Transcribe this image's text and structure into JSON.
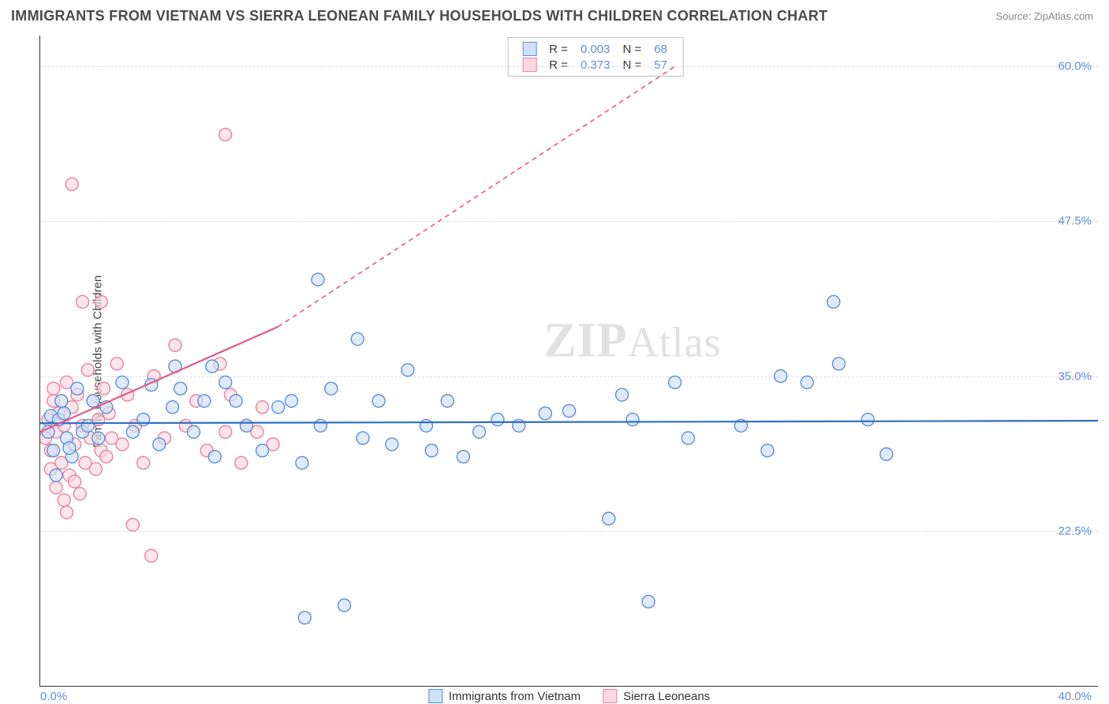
{
  "header": {
    "title": "IMMIGRANTS FROM VIETNAM VS SIERRA LEONEAN FAMILY HOUSEHOLDS WITH CHILDREN CORRELATION CHART",
    "source": "Source: ZipAtlas.com"
  },
  "y_axis": {
    "label": "Family Households with Children"
  },
  "watermark": {
    "a": "ZIP",
    "b": "Atlas"
  },
  "chart": {
    "type": "scatter",
    "xlim": [
      0,
      40
    ],
    "ylim": [
      10,
      62.5
    ],
    "x_ticks": [
      {
        "v": 0,
        "label": "0.0%"
      },
      {
        "v": 40,
        "label": "40.0%"
      }
    ],
    "y_ticks": [
      {
        "v": 22.5,
        "label": "22.5%"
      },
      {
        "v": 35.0,
        "label": "35.0%"
      },
      {
        "v": 47.5,
        "label": "47.5%"
      },
      {
        "v": 60.0,
        "label": "60.0%"
      }
    ],
    "grid_color": "#dddddd",
    "background_color": "#ffffff",
    "series": [
      {
        "name": "Immigrants from Vietnam",
        "label": "Immigrants from Vietnam",
        "stroke": "#5b8fd6",
        "fill": "#cfe0f7",
        "fill_opacity": 0.65,
        "marker_r": 8,
        "R": "0.003",
        "N": "68",
        "trend": {
          "x0": 0,
          "y0": 31.2,
          "x1": 40,
          "y1": 31.4,
          "color": "#2f6fc4",
          "width": 2.2,
          "dash": ""
        },
        "points": [
          [
            0.3,
            30.5
          ],
          [
            0.4,
            31.8
          ],
          [
            0.5,
            29.0
          ],
          [
            0.6,
            27.0
          ],
          [
            0.8,
            33.0
          ],
          [
            1.0,
            30.0
          ],
          [
            0.7,
            31.5
          ],
          [
            0.9,
            32.0
          ],
          [
            1.2,
            28.5
          ],
          [
            1.4,
            34.0
          ],
          [
            1.6,
            30.5
          ],
          [
            1.1,
            29.2
          ],
          [
            1.8,
            31.0
          ],
          [
            2.0,
            33.0
          ],
          [
            2.2,
            30.0
          ],
          [
            2.5,
            32.5
          ],
          [
            3.1,
            34.5
          ],
          [
            3.5,
            30.5
          ],
          [
            3.9,
            31.5
          ],
          [
            4.2,
            34.3
          ],
          [
            4.5,
            29.5
          ],
          [
            5.0,
            32.5
          ],
          [
            5.1,
            35.8
          ],
          [
            5.3,
            34.0
          ],
          [
            5.8,
            30.5
          ],
          [
            6.2,
            33.0
          ],
          [
            6.6,
            28.5
          ],
          [
            7.0,
            34.5
          ],
          [
            7.4,
            33.0
          ],
          [
            7.8,
            31.0
          ],
          [
            8.4,
            29.0
          ],
          [
            9.0,
            32.5
          ],
          [
            9.5,
            33.0
          ],
          [
            9.9,
            28.0
          ],
          [
            10.0,
            15.5
          ],
          [
            10.5,
            42.8
          ],
          [
            10.6,
            31.0
          ],
          [
            11.0,
            34.0
          ],
          [
            11.5,
            16.5
          ],
          [
            12.0,
            38.0
          ],
          [
            12.2,
            30.0
          ],
          [
            12.8,
            33.0
          ],
          [
            13.3,
            29.5
          ],
          [
            13.9,
            35.5
          ],
          [
            14.6,
            31.0
          ],
          [
            14.8,
            29.0
          ],
          [
            15.4,
            33.0
          ],
          [
            16.0,
            28.5
          ],
          [
            16.6,
            30.5
          ],
          [
            17.3,
            31.5
          ],
          [
            18.1,
            31.0
          ],
          [
            19.1,
            32.0
          ],
          [
            21.5,
            23.5
          ],
          [
            22.0,
            33.5
          ],
          [
            22.4,
            31.5
          ],
          [
            23.0,
            16.8
          ],
          [
            24.0,
            34.5
          ],
          [
            26.5,
            31.0
          ],
          [
            27.5,
            29.0
          ],
          [
            28.0,
            35.0
          ],
          [
            30.0,
            41.0
          ],
          [
            30.2,
            36.0
          ],
          [
            31.3,
            31.5
          ],
          [
            32.0,
            28.7
          ],
          [
            29.0,
            34.5
          ],
          [
            24.5,
            30.0
          ],
          [
            20.0,
            32.2
          ],
          [
            6.5,
            35.8
          ]
        ]
      },
      {
        "name": "Sierra Leoneans",
        "label": "Sierra Leoneans",
        "stroke": "#e8839f",
        "fill": "#fbd7e1",
        "fill_opacity": 0.65,
        "marker_r": 8,
        "R": "0.373",
        "N": "57",
        "trend": {
          "x0": 0,
          "y0": 30.5,
          "x1": 9,
          "y1": 39.0,
          "color": "#e35a85",
          "width": 2.2,
          "dash": "",
          "ext_x1": 24,
          "ext_y1": 60.0,
          "ext_dash": "6 5"
        },
        "points": [
          [
            0.2,
            30.0
          ],
          [
            0.3,
            31.5
          ],
          [
            0.4,
            29.0
          ],
          [
            0.5,
            33.0
          ],
          [
            0.6,
            30.5
          ],
          [
            0.7,
            32.0
          ],
          [
            0.8,
            28.0
          ],
          [
            0.9,
            31.0
          ],
          [
            1.0,
            34.5
          ],
          [
            1.1,
            27.0
          ],
          [
            1.2,
            32.5
          ],
          [
            1.3,
            29.5
          ],
          [
            1.4,
            33.5
          ],
          [
            1.5,
            25.5
          ],
          [
            1.6,
            31.0
          ],
          [
            0.9,
            25.0
          ],
          [
            1.7,
            28.0
          ],
          [
            1.8,
            35.5
          ],
          [
            1.9,
            30.0
          ],
          [
            2.0,
            33.0
          ],
          [
            2.1,
            27.5
          ],
          [
            2.2,
            31.5
          ],
          [
            2.3,
            29.0
          ],
          [
            0.6,
            26.0
          ],
          [
            2.4,
            34.0
          ],
          [
            2.5,
            28.5
          ],
          [
            2.6,
            32.0
          ],
          [
            2.7,
            30.0
          ],
          [
            2.9,
            36.0
          ],
          [
            3.1,
            29.5
          ],
          [
            1.0,
            24.0
          ],
          [
            1.3,
            26.5
          ],
          [
            3.3,
            33.5
          ],
          [
            3.6,
            31.0
          ],
          [
            3.9,
            28.0
          ],
          [
            4.3,
            35.0
          ],
          [
            4.7,
            30.0
          ],
          [
            5.1,
            37.5
          ],
          [
            5.5,
            31.0
          ],
          [
            1.6,
            41.0
          ],
          [
            5.9,
            33.0
          ],
          [
            6.3,
            29.0
          ],
          [
            6.8,
            36.0
          ],
          [
            7.0,
            30.5
          ],
          [
            7.2,
            33.5
          ],
          [
            7.6,
            28.0
          ],
          [
            1.2,
            50.5
          ],
          [
            3.5,
            23.0
          ],
          [
            7.8,
            31.0
          ],
          [
            8.2,
            30.5
          ],
          [
            8.4,
            32.5
          ],
          [
            8.8,
            29.5
          ],
          [
            2.3,
            41.0
          ],
          [
            4.2,
            20.5
          ],
          [
            7.0,
            54.5
          ],
          [
            0.5,
            34.0
          ],
          [
            0.4,
            27.5
          ]
        ]
      }
    ]
  },
  "legend_top": {
    "rows": [
      {
        "swatch": "blue",
        "Rlabel": "R =",
        "R": "0.003",
        "Nlabel": "N =",
        "N": "68"
      },
      {
        "swatch": "pink",
        "Rlabel": "R =",
        "R": "0.373",
        "Nlabel": "N =",
        "N": "57"
      }
    ]
  },
  "legend_bottom": {
    "items": [
      {
        "swatch": "blue",
        "label": "Immigrants from Vietnam"
      },
      {
        "swatch": "pink",
        "label": "Sierra Leoneans"
      }
    ]
  }
}
